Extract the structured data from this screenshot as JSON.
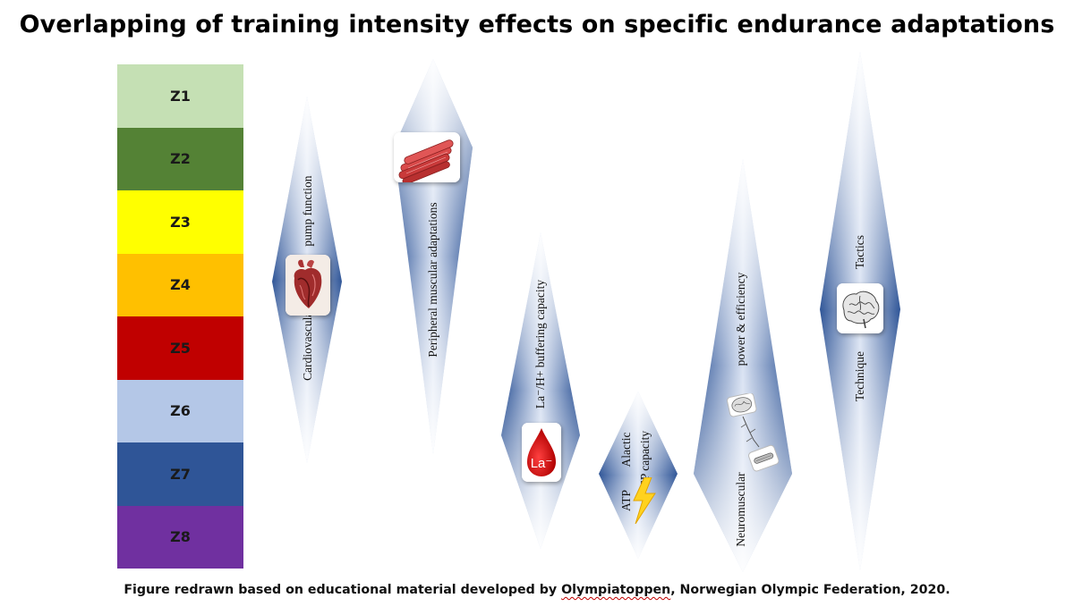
{
  "title": "Overlapping of training intensity effects on specific endurance adaptations",
  "zones": [
    {
      "label": "Z1",
      "color": "#c5e0b4"
    },
    {
      "label": "Z2",
      "color": "#548235"
    },
    {
      "label": "Z3",
      "color": "#ffff00"
    },
    {
      "label": "Z4",
      "color": "#ffc000"
    },
    {
      "label": "Z5",
      "color": "#c00000"
    },
    {
      "label": "Z6",
      "color": "#b4c7e7"
    },
    {
      "label": "Z7",
      "color": "#2f5597"
    },
    {
      "label": "Z8",
      "color": "#7030a0"
    }
  ],
  "adaptations": {
    "cardiovascular": {
      "label_a": "Cardiovascular",
      "label_b": "pump function",
      "icon": "heart-icon"
    },
    "peripheral": {
      "label": "Peripheral muscular adaptations",
      "icon": "muscle-fibers-icon"
    },
    "buffering": {
      "label": "La⁻/H+ buffering capacity",
      "icon_text": "La⁻",
      "icon": "blood-drop-icon"
    },
    "alactic": {
      "label_a": "Alactic",
      "label_b": "CP capacity",
      "label_c": "ATP",
      "icon": "lightning-icon"
    },
    "neuromuscular": {
      "label_a": "Neuromuscular",
      "label_b": "power & efficiency",
      "icon": "brain-nerve-icon"
    },
    "technique": {
      "label_a": "Technique",
      "label_b": "Tactics",
      "icon": "brain-icon"
    }
  },
  "footer": {
    "prefix": "Figure redrawn based on educational material developed by ",
    "org": "Olympiatoppen",
    "suffix": ", Norwegian Olympic Federation, 2020."
  },
  "colors": {
    "diamond_dark": "#2f5597",
    "diamond_light": "#ffffff"
  }
}
